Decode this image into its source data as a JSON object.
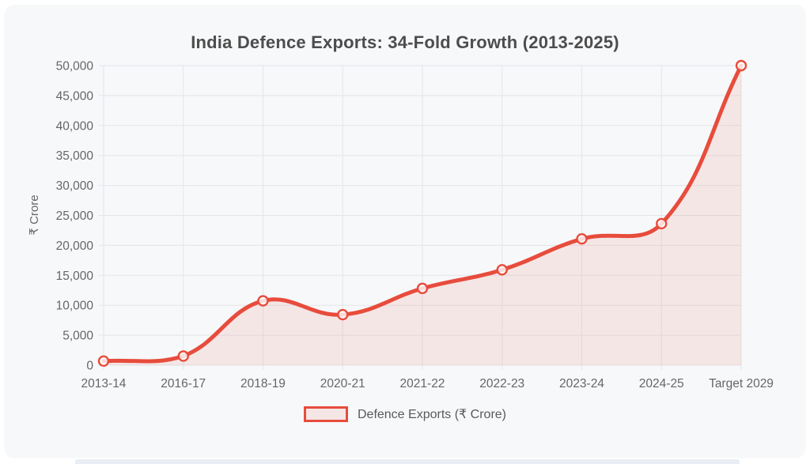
{
  "chart_data": {
    "type": "area",
    "title": "India Defence Exports: 34-Fold Growth (2013-2025)",
    "xlabel": "",
    "ylabel": "₹ Crore",
    "legend": "Defence Exports (₹ Crore)",
    "legend_position": "bottom",
    "grid": true,
    "categories": [
      "2013-14",
      "2016-17",
      "2018-19",
      "2020-21",
      "2021-22",
      "2022-23",
      "2023-24",
      "2024-25",
      "Target 2029"
    ],
    "series": [
      {
        "name": "Defence Exports (₹ Crore)",
        "values": [
          686,
          1521,
          10745,
          8434,
          12815,
          15920,
          21083,
          23622,
          50000
        ]
      }
    ],
    "ylim": [
      0,
      50000
    ],
    "ytick_step": 5000,
    "ytick_labels": [
      "0",
      "5,000",
      "10,000",
      "15,000",
      "20,000",
      "25,000",
      "30,000",
      "35,000",
      "40,000",
      "45,000",
      "50,000"
    ],
    "colors": {
      "line": "#e74c3c",
      "area_fill": "rgba(231, 76, 60, 0.10)",
      "marker_fill": "rgba(255, 255, 255, 0.80)",
      "grid": "#e3e5e9",
      "tick_text": "#666666",
      "title_text": "#4d4d4d",
      "card_bg": "#f7f8fa"
    }
  }
}
